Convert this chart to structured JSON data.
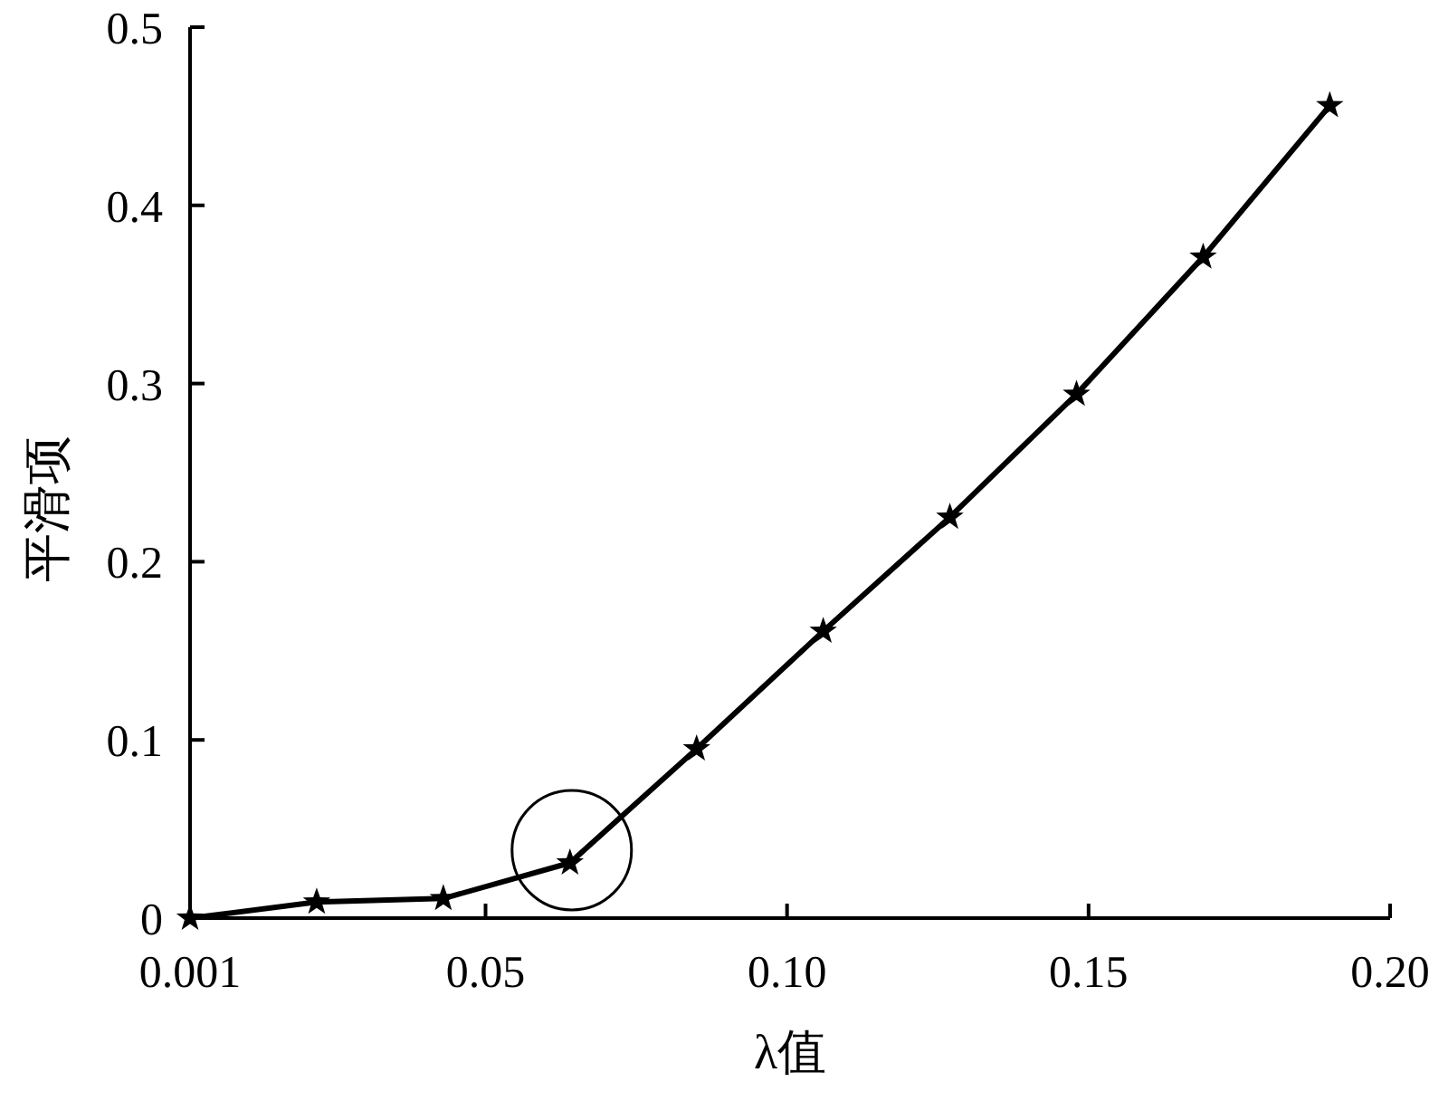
{
  "chart_data": {
    "type": "line",
    "xlabel": "λ值",
    "ylabel": "平滑项",
    "x": [
      0.001,
      0.022,
      0.043,
      0.064,
      0.085,
      0.106,
      0.127,
      0.148,
      0.169,
      0.19
    ],
    "series": [
      {
        "color": "#000000",
        "values": [
          0.0,
          0.009,
          0.011,
          0.031,
          0.095,
          0.161,
          0.225,
          0.294,
          0.371,
          0.456
        ]
      }
    ],
    "xlim": [
      0.001,
      0.2
    ],
    "xticks": [
      {
        "value": 0.001,
        "label": "0.001"
      },
      0.05,
      {
        "value": 0.1,
        "label": "0.10"
      },
      0.15,
      {
        "value": 0.2,
        "label": "0.20"
      }
    ],
    "ylim": [
      0,
      0.5
    ],
    "yticks": [
      0,
      0.1,
      0.2,
      0.3,
      0.4,
      0.5
    ],
    "marker": "star",
    "line_style": "solid",
    "grid": false
  }
}
